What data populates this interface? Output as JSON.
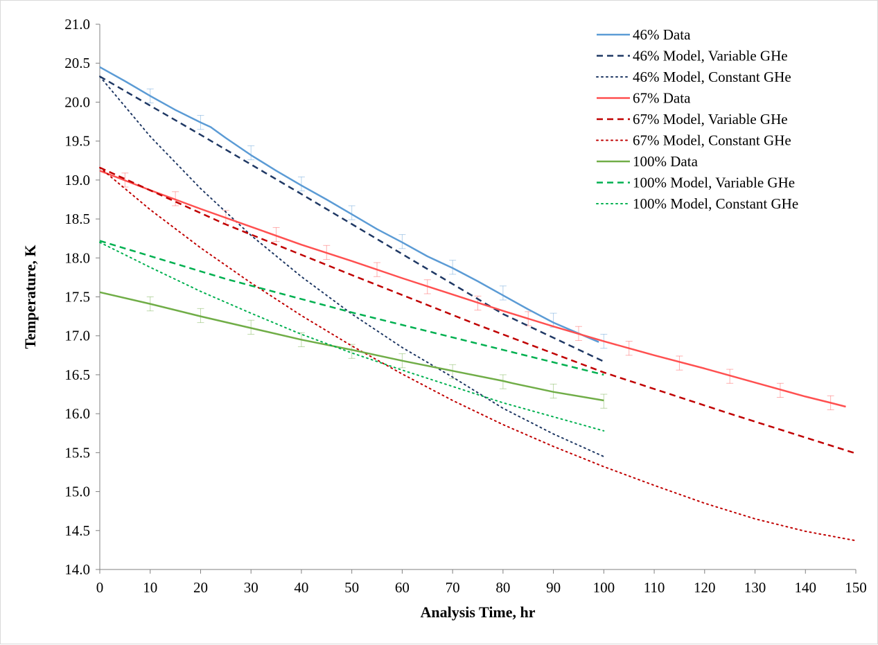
{
  "chart_data": {
    "type": "line",
    "title": "",
    "xlabel": "Analysis Time, hr",
    "ylabel": "Temperature, K",
    "xlim": [
      0,
      150
    ],
    "ylim": [
      14.0,
      21.0
    ],
    "x_ticks": [
      "0",
      "10",
      "20",
      "30",
      "40",
      "50",
      "60",
      "70",
      "80",
      "90",
      "100",
      "110",
      "120",
      "130",
      "140",
      "150"
    ],
    "y_ticks": [
      "14.0",
      "14.5",
      "15.0",
      "15.5",
      "16.0",
      "16.5",
      "17.0",
      "17.5",
      "18.0",
      "18.5",
      "19.0",
      "19.5",
      "20.0",
      "20.5",
      "21.0"
    ],
    "grid": false,
    "legend_position": "top-right",
    "series": [
      {
        "name": "46% Data",
        "color": "#5b9bd5",
        "dash": "solid",
        "x": [
          0,
          5,
          10,
          15,
          20,
          22,
          25,
          30,
          35,
          40,
          45,
          50,
          55,
          60,
          65,
          70,
          75,
          80,
          85,
          90,
          95,
          99
        ],
        "y": [
          20.45,
          20.27,
          20.08,
          19.9,
          19.74,
          19.68,
          19.54,
          19.32,
          19.12,
          18.93,
          18.75,
          18.56,
          18.37,
          18.2,
          18.02,
          17.87,
          17.7,
          17.52,
          17.34,
          17.17,
          17.03,
          16.92
        ],
        "error_x": [
          10,
          20,
          30,
          40,
          50,
          60,
          70,
          80,
          90,
          100
        ],
        "error_y": [
          20.08,
          19.74,
          19.35,
          18.95,
          18.58,
          18.21,
          17.88,
          17.55,
          17.2,
          16.93
        ],
        "error": 0.09
      },
      {
        "name": "46% Model, Variable GHe",
        "color": "#1f3864",
        "dash": "dashed",
        "x": [
          0,
          20,
          40,
          60,
          80,
          100
        ],
        "y": [
          20.33,
          19.58,
          18.82,
          18.05,
          17.28,
          16.67
        ]
      },
      {
        "name": "46% Model, Constant GHe",
        "color": "#1f3864",
        "dash": "dotted",
        "x": [
          0,
          10,
          20,
          30,
          40,
          50,
          60,
          70,
          80,
          90,
          100
        ],
        "y": [
          20.33,
          19.56,
          18.89,
          18.29,
          17.76,
          17.28,
          16.85,
          16.47,
          16.07,
          15.74,
          15.45
        ]
      },
      {
        "name": "67% Data",
        "color": "#ff5050",
        "dash": "solid",
        "x": [
          0,
          10,
          20,
          30,
          40,
          50,
          60,
          70,
          80,
          90,
          100,
          110,
          120,
          130,
          140,
          145,
          148
        ],
        "y": [
          19.12,
          18.87,
          18.63,
          18.4,
          18.17,
          17.96,
          17.74,
          17.53,
          17.32,
          17.12,
          16.93,
          16.75,
          16.58,
          16.4,
          16.22,
          16.14,
          16.09
        ],
        "error_x": [
          5,
          15,
          25,
          35,
          45,
          55,
          65,
          75,
          85,
          95,
          105,
          115,
          125,
          135,
          145
        ],
        "error_y": [
          19.0,
          18.76,
          18.52,
          18.3,
          18.07,
          17.85,
          17.63,
          17.42,
          17.22,
          17.03,
          16.84,
          16.65,
          16.48,
          16.3,
          16.14
        ],
        "error": 0.09
      },
      {
        "name": "67% Model, Variable GHe",
        "color": "#c00000",
        "dash": "dashed",
        "x": [
          0,
          25,
          50,
          75,
          100,
          125,
          150
        ],
        "y": [
          19.16,
          18.43,
          17.78,
          17.14,
          16.53,
          16.0,
          15.49
        ]
      },
      {
        "name": "67% Model, Constant GHe",
        "color": "#c00000",
        "dash": "dotted",
        "x": [
          0,
          10,
          20,
          30,
          40,
          50,
          60,
          70,
          80,
          90,
          100,
          110,
          120,
          130,
          140,
          150
        ],
        "y": [
          19.16,
          18.62,
          18.13,
          17.68,
          17.26,
          16.87,
          16.51,
          16.17,
          15.86,
          15.58,
          15.32,
          15.08,
          14.85,
          14.65,
          14.49,
          14.37
        ]
      },
      {
        "name": "100% Data",
        "color": "#70ad47",
        "dash": "solid",
        "x": [
          0,
          10,
          20,
          30,
          40,
          50,
          60,
          70,
          80,
          82,
          90,
          100
        ],
        "y": [
          17.56,
          17.41,
          17.25,
          17.1,
          16.95,
          16.82,
          16.68,
          16.55,
          16.42,
          16.39,
          16.28,
          16.17
        ],
        "error_x": [
          10,
          20,
          30,
          40,
          50,
          60,
          70,
          80,
          90,
          100
        ],
        "error_y": [
          17.41,
          17.26,
          17.11,
          16.95,
          16.8,
          16.68,
          16.54,
          16.41,
          16.29,
          16.16
        ],
        "error": 0.09
      },
      {
        "name": "100% Model, Variable GHe",
        "color": "#00b050",
        "dash": "dashed",
        "x": [
          0,
          25,
          50,
          75,
          100
        ],
        "y": [
          18.22,
          17.73,
          17.3,
          16.9,
          16.5
        ]
      },
      {
        "name": "100% Model, Constant GHe",
        "color": "#00b050",
        "dash": "dotted",
        "x": [
          0,
          10,
          20,
          30,
          40,
          50,
          60,
          70,
          80,
          90,
          100
        ],
        "y": [
          18.2,
          17.88,
          17.57,
          17.29,
          17.02,
          16.78,
          16.56,
          16.35,
          16.14,
          15.96,
          15.78
        ]
      }
    ]
  }
}
